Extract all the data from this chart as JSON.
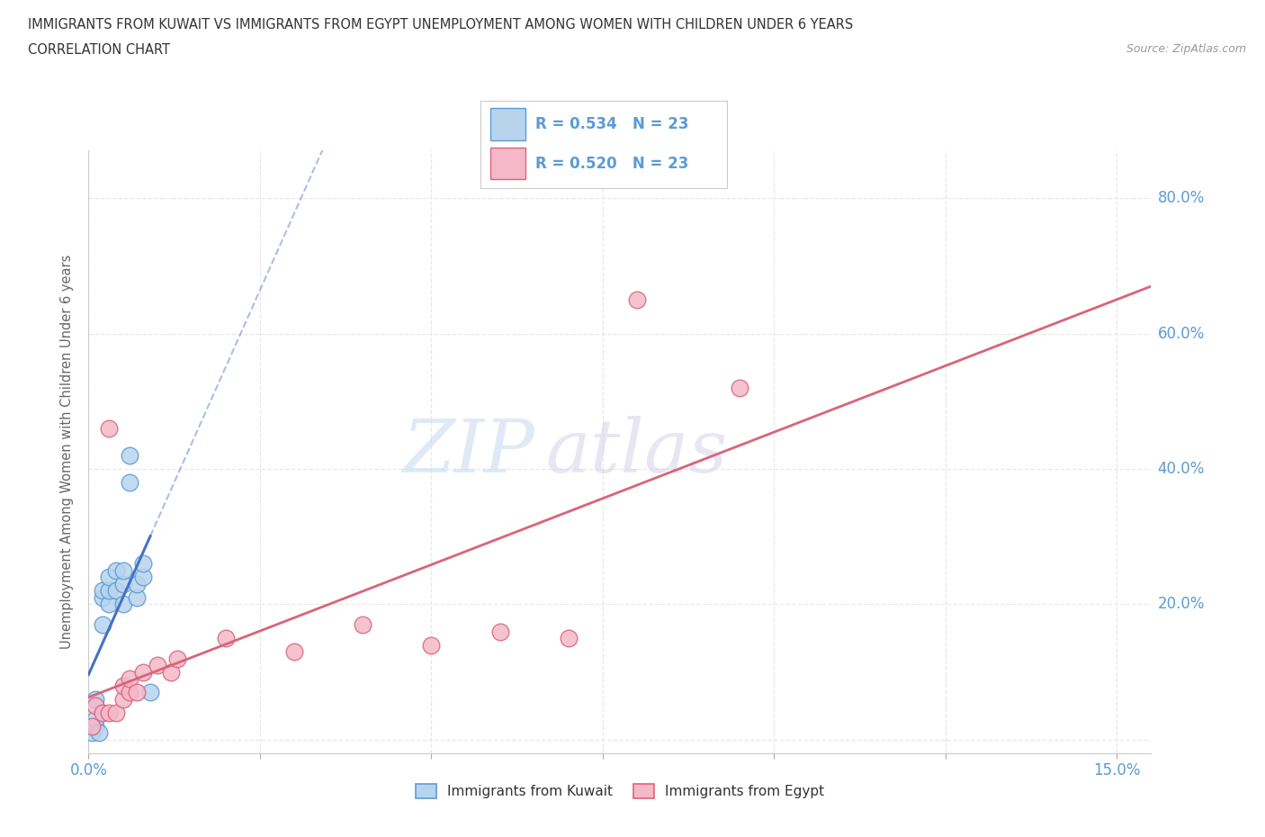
{
  "title_line1": "IMMIGRANTS FROM KUWAIT VS IMMIGRANTS FROM EGYPT UNEMPLOYMENT AMONG WOMEN WITH CHILDREN UNDER 6 YEARS",
  "title_line2": "CORRELATION CHART",
  "source_text": "Source: ZipAtlas.com",
  "ylabel": "Unemployment Among Women with Children Under 6 years",
  "xlim": [
    0.0,
    0.155
  ],
  "ylim": [
    -0.02,
    0.87
  ],
  "x_ticks": [
    0.0,
    0.025,
    0.05,
    0.075,
    0.1,
    0.125,
    0.15
  ],
  "x_tick_labels_show": [
    "0.0%",
    "",
    "",
    "",
    "",
    "",
    "15.0%"
  ],
  "y_ticks": [
    0.0,
    0.2,
    0.4,
    0.6,
    0.8
  ],
  "y_tick_labels_show": [
    "",
    "20.0%",
    "40.0%",
    "60.0%",
    "80.0%"
  ],
  "kuwait_color": "#b8d4ed",
  "kuwait_edge_color": "#5b9bd5",
  "egypt_color": "#f4b8c8",
  "egypt_edge_color": "#d9647a",
  "kuwait_line_color": "#4472c4",
  "egypt_line_color": "#d9647a",
  "legend_r_kuwait": "R = 0.534",
  "legend_n_kuwait": "N = 23",
  "legend_r_egypt": "R = 0.520",
  "legend_n_egypt": "N = 23",
  "kuwait_x": [
    0.0005,
    0.001,
    0.001,
    0.001,
    0.0015,
    0.002,
    0.002,
    0.002,
    0.003,
    0.003,
    0.003,
    0.004,
    0.004,
    0.005,
    0.005,
    0.005,
    0.006,
    0.006,
    0.007,
    0.007,
    0.008,
    0.008,
    0.009
  ],
  "kuwait_y": [
    0.01,
    0.02,
    0.03,
    0.06,
    0.01,
    0.17,
    0.21,
    0.22,
    0.2,
    0.22,
    0.24,
    0.22,
    0.25,
    0.2,
    0.23,
    0.25,
    0.38,
    0.42,
    0.21,
    0.23,
    0.24,
    0.26,
    0.07
  ],
  "egypt_x": [
    0.0005,
    0.001,
    0.002,
    0.003,
    0.003,
    0.004,
    0.005,
    0.005,
    0.006,
    0.006,
    0.007,
    0.008,
    0.01,
    0.012,
    0.013,
    0.02,
    0.03,
    0.04,
    0.05,
    0.06,
    0.07,
    0.08,
    0.095
  ],
  "egypt_y": [
    0.02,
    0.05,
    0.04,
    0.04,
    0.46,
    0.04,
    0.06,
    0.08,
    0.07,
    0.09,
    0.07,
    0.1,
    0.11,
    0.1,
    0.12,
    0.15,
    0.13,
    0.17,
    0.14,
    0.16,
    0.15,
    0.65,
    0.52
  ],
  "watermark_zip": "ZIP",
  "watermark_atlas": "atlas",
  "background_color": "#ffffff",
  "grid_color": "#e8e8e8",
  "tick_color": "#5b9bd5",
  "legend_text_color": "#5b9bd5",
  "title_color": "#333333",
  "ylabel_color": "#666666"
}
